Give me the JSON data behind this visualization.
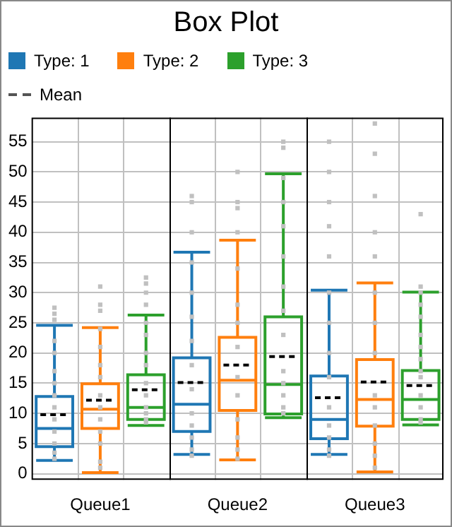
{
  "chart_data": {
    "type": "box",
    "title": "Box Plot",
    "categories": [
      "Queue1",
      "Queue2",
      "Queue3"
    ],
    "ylim": [
      -1,
      59
    ],
    "yticks": [
      0,
      5,
      10,
      15,
      20,
      25,
      30,
      35,
      40,
      45,
      50,
      55
    ],
    "grid": true,
    "legend": "top left",
    "annotations": [
      "Mean"
    ],
    "series": [
      {
        "name": "Type: 1",
        "color": "#1f77b4",
        "boxes": [
          {
            "low": 2.2,
            "q1": 4.5,
            "median": 7.5,
            "q3": 12.8,
            "high": 24.6,
            "mean": 9.8
          },
          {
            "low": 3.2,
            "q1": 7.0,
            "median": 11.5,
            "q3": 19.2,
            "high": 36.7,
            "mean": 15.1
          },
          {
            "low": 3.2,
            "q1": 5.8,
            "median": 9.0,
            "q3": 16.2,
            "high": 30.4,
            "mean": 12.6
          }
        ]
      },
      {
        "name": "Type: 2",
        "color": "#ff7f0e",
        "boxes": [
          {
            "low": 0.2,
            "q1": 7.5,
            "median": 10.7,
            "q3": 14.9,
            "high": 24.2,
            "mean": 12.2
          },
          {
            "low": 2.3,
            "q1": 10.5,
            "median": 15.5,
            "q3": 22.6,
            "high": 38.7,
            "mean": 18.0
          },
          {
            "low": 0.3,
            "q1": 7.9,
            "median": 12.3,
            "q3": 18.9,
            "high": 31.6,
            "mean": 15.2
          }
        ]
      },
      {
        "name": "Type: 3",
        "color": "#2ca02c",
        "boxes": [
          {
            "low": 8.0,
            "q1": 9.0,
            "median": 11.0,
            "q3": 16.4,
            "high": 26.3,
            "mean": 13.9
          },
          {
            "low": 9.3,
            "q1": 9.9,
            "median": 14.8,
            "q3": 26.0,
            "high": 49.7,
            "mean": 19.4
          },
          {
            "low": 8.1,
            "q1": 9.0,
            "median": 12.3,
            "q3": 17.1,
            "high": 30.1,
            "mean": 14.6
          }
        ]
      },
      {
        "type": "scatter",
        "color": "#c0c0c0",
        "marker": "square",
        "x": [
          "Queue1",
          "Queue1",
          "Queue1",
          "Queue1",
          "Queue1",
          "Queue1",
          "Queue1",
          "Queue1",
          "Queue1",
          "Queue1",
          "Queue1",
          "Queue1",
          "Queue1",
          "Queue1",
          "Queue2",
          "Queue2",
          "Queue2",
          "Queue2",
          "Queue2",
          "Queue2",
          "Queue2",
          "Queue2",
          "Queue2",
          "Queue2",
          "Queue2",
          "Queue2",
          "Queue2",
          "Queue2",
          "Queue3",
          "Queue3",
          "Queue3",
          "Queue3",
          "Queue3",
          "Queue3",
          "Queue3",
          "Queue3",
          "Queue3",
          "Queue3",
          "Queue3",
          "Queue3",
          "Queue3",
          "Queue3"
        ],
        "values": [
          27.5,
          26.5,
          25.5,
          22,
          20,
          17,
          15,
          13,
          11,
          9,
          7,
          5,
          3.5,
          2.5,
          46,
          45,
          40,
          35,
          30,
          26,
          22,
          18,
          14,
          10,
          8,
          6,
          4,
          3,
          55,
          50,
          45,
          41,
          36,
          30,
          25,
          20,
          16,
          11,
          8,
          6,
          4,
          3
        ]
      },
      {
        "type": "scatter",
        "color": "#c0c0c0",
        "marker": "square",
        "x": [
          "Queue1",
          "Queue1",
          "Queue1",
          "Queue1",
          "Queue1",
          "Queue1",
          "Queue1",
          "Queue1",
          "Queue1",
          "Queue1",
          "Queue1",
          "Queue1",
          "Queue1",
          "Queue1",
          "Queue2",
          "Queue2",
          "Queue2",
          "Queue2",
          "Queue2",
          "Queue2",
          "Queue2",
          "Queue2",
          "Queue2",
          "Queue2",
          "Queue2",
          "Queue2",
          "Queue2",
          "Queue2",
          "Queue3",
          "Queue3",
          "Queue3",
          "Queue3",
          "Queue3",
          "Queue3",
          "Queue3",
          "Queue3",
          "Queue3",
          "Queue3",
          "Queue3",
          "Queue3",
          "Queue3",
          "Queue3"
        ],
        "values": [
          31,
          28,
          27,
          24,
          21,
          18,
          16,
          13,
          11,
          9,
          7,
          5,
          2,
          1,
          50,
          45,
          44,
          40,
          34,
          28,
          25,
          21,
          16,
          13,
          9,
          6,
          4,
          2.5,
          58,
          53,
          46,
          40,
          36,
          30,
          25,
          20,
          13,
          11,
          8,
          5,
          3,
          1
        ]
      },
      {
        "type": "scatter",
        "color": "#c0c0c0",
        "marker": "square",
        "x": [
          "Queue1",
          "Queue1",
          "Queue1",
          "Queue1",
          "Queue1",
          "Queue1",
          "Queue1",
          "Queue1",
          "Queue1",
          "Queue1",
          "Queue1",
          "Queue1",
          "Queue1",
          "Queue1",
          "Queue2",
          "Queue2",
          "Queue2",
          "Queue2",
          "Queue2",
          "Queue2",
          "Queue2",
          "Queue2",
          "Queue2",
          "Queue2",
          "Queue2",
          "Queue2",
          "Queue2",
          "Queue2",
          "Queue3",
          "Queue3",
          "Queue3",
          "Queue3",
          "Queue3",
          "Queue3",
          "Queue3",
          "Queue3",
          "Queue3",
          "Queue3",
          "Queue3",
          "Queue3",
          "Queue3",
          "Queue3"
        ],
        "values": [
          32.5,
          31.5,
          30,
          28,
          25,
          23,
          20,
          18,
          15,
          13,
          11,
          10,
          9,
          8.5,
          55,
          54,
          49,
          45,
          41,
          36,
          31,
          27,
          23,
          17,
          15,
          13,
          11,
          10,
          43,
          31,
          30,
          28,
          26,
          23,
          21,
          19,
          17,
          16,
          13,
          11,
          9,
          8.5
        ]
      }
    ]
  }
}
